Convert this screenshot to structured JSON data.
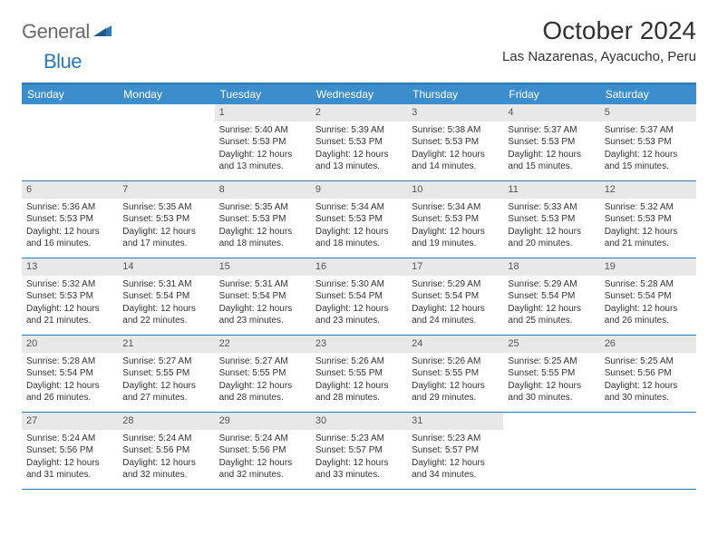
{
  "logo": {
    "text1": "General",
    "text2": "Blue"
  },
  "title": "October 2024",
  "location": "Las Nazarenas, Ayacucho, Peru",
  "colors": {
    "header_bg": "#3c8dcc",
    "header_border": "#2a7ab9",
    "daynum_bg": "#e8e8e8",
    "logo_gray": "#6b6b6b",
    "logo_blue": "#2a7ab9"
  },
  "dow": [
    "Sunday",
    "Monday",
    "Tuesday",
    "Wednesday",
    "Thursday",
    "Friday",
    "Saturday"
  ],
  "weeks": [
    [
      {
        "n": "",
        "sr": "",
        "ss": "",
        "dl": ""
      },
      {
        "n": "",
        "sr": "",
        "ss": "",
        "dl": ""
      },
      {
        "n": "1",
        "sr": "Sunrise: 5:40 AM",
        "ss": "Sunset: 5:53 PM",
        "dl": "Daylight: 12 hours and 13 minutes."
      },
      {
        "n": "2",
        "sr": "Sunrise: 5:39 AM",
        "ss": "Sunset: 5:53 PM",
        "dl": "Daylight: 12 hours and 13 minutes."
      },
      {
        "n": "3",
        "sr": "Sunrise: 5:38 AM",
        "ss": "Sunset: 5:53 PM",
        "dl": "Daylight: 12 hours and 14 minutes."
      },
      {
        "n": "4",
        "sr": "Sunrise: 5:37 AM",
        "ss": "Sunset: 5:53 PM",
        "dl": "Daylight: 12 hours and 15 minutes."
      },
      {
        "n": "5",
        "sr": "Sunrise: 5:37 AM",
        "ss": "Sunset: 5:53 PM",
        "dl": "Daylight: 12 hours and 15 minutes."
      }
    ],
    [
      {
        "n": "6",
        "sr": "Sunrise: 5:36 AM",
        "ss": "Sunset: 5:53 PM",
        "dl": "Daylight: 12 hours and 16 minutes."
      },
      {
        "n": "7",
        "sr": "Sunrise: 5:35 AM",
        "ss": "Sunset: 5:53 PM",
        "dl": "Daylight: 12 hours and 17 minutes."
      },
      {
        "n": "8",
        "sr": "Sunrise: 5:35 AM",
        "ss": "Sunset: 5:53 PM",
        "dl": "Daylight: 12 hours and 18 minutes."
      },
      {
        "n": "9",
        "sr": "Sunrise: 5:34 AM",
        "ss": "Sunset: 5:53 PM",
        "dl": "Daylight: 12 hours and 18 minutes."
      },
      {
        "n": "10",
        "sr": "Sunrise: 5:34 AM",
        "ss": "Sunset: 5:53 PM",
        "dl": "Daylight: 12 hours and 19 minutes."
      },
      {
        "n": "11",
        "sr": "Sunrise: 5:33 AM",
        "ss": "Sunset: 5:53 PM",
        "dl": "Daylight: 12 hours and 20 minutes."
      },
      {
        "n": "12",
        "sr": "Sunrise: 5:32 AM",
        "ss": "Sunset: 5:53 PM",
        "dl": "Daylight: 12 hours and 21 minutes."
      }
    ],
    [
      {
        "n": "13",
        "sr": "Sunrise: 5:32 AM",
        "ss": "Sunset: 5:53 PM",
        "dl": "Daylight: 12 hours and 21 minutes."
      },
      {
        "n": "14",
        "sr": "Sunrise: 5:31 AM",
        "ss": "Sunset: 5:54 PM",
        "dl": "Daylight: 12 hours and 22 minutes."
      },
      {
        "n": "15",
        "sr": "Sunrise: 5:31 AM",
        "ss": "Sunset: 5:54 PM",
        "dl": "Daylight: 12 hours and 23 minutes."
      },
      {
        "n": "16",
        "sr": "Sunrise: 5:30 AM",
        "ss": "Sunset: 5:54 PM",
        "dl": "Daylight: 12 hours and 23 minutes."
      },
      {
        "n": "17",
        "sr": "Sunrise: 5:29 AM",
        "ss": "Sunset: 5:54 PM",
        "dl": "Daylight: 12 hours and 24 minutes."
      },
      {
        "n": "18",
        "sr": "Sunrise: 5:29 AM",
        "ss": "Sunset: 5:54 PM",
        "dl": "Daylight: 12 hours and 25 minutes."
      },
      {
        "n": "19",
        "sr": "Sunrise: 5:28 AM",
        "ss": "Sunset: 5:54 PM",
        "dl": "Daylight: 12 hours and 26 minutes."
      }
    ],
    [
      {
        "n": "20",
        "sr": "Sunrise: 5:28 AM",
        "ss": "Sunset: 5:54 PM",
        "dl": "Daylight: 12 hours and 26 minutes."
      },
      {
        "n": "21",
        "sr": "Sunrise: 5:27 AM",
        "ss": "Sunset: 5:55 PM",
        "dl": "Daylight: 12 hours and 27 minutes."
      },
      {
        "n": "22",
        "sr": "Sunrise: 5:27 AM",
        "ss": "Sunset: 5:55 PM",
        "dl": "Daylight: 12 hours and 28 minutes."
      },
      {
        "n": "23",
        "sr": "Sunrise: 5:26 AM",
        "ss": "Sunset: 5:55 PM",
        "dl": "Daylight: 12 hours and 28 minutes."
      },
      {
        "n": "24",
        "sr": "Sunrise: 5:26 AM",
        "ss": "Sunset: 5:55 PM",
        "dl": "Daylight: 12 hours and 29 minutes."
      },
      {
        "n": "25",
        "sr": "Sunrise: 5:25 AM",
        "ss": "Sunset: 5:55 PM",
        "dl": "Daylight: 12 hours and 30 minutes."
      },
      {
        "n": "26",
        "sr": "Sunrise: 5:25 AM",
        "ss": "Sunset: 5:56 PM",
        "dl": "Daylight: 12 hours and 30 minutes."
      }
    ],
    [
      {
        "n": "27",
        "sr": "Sunrise: 5:24 AM",
        "ss": "Sunset: 5:56 PM",
        "dl": "Daylight: 12 hours and 31 minutes."
      },
      {
        "n": "28",
        "sr": "Sunrise: 5:24 AM",
        "ss": "Sunset: 5:56 PM",
        "dl": "Daylight: 12 hours and 32 minutes."
      },
      {
        "n": "29",
        "sr": "Sunrise: 5:24 AM",
        "ss": "Sunset: 5:56 PM",
        "dl": "Daylight: 12 hours and 32 minutes."
      },
      {
        "n": "30",
        "sr": "Sunrise: 5:23 AM",
        "ss": "Sunset: 5:57 PM",
        "dl": "Daylight: 12 hours and 33 minutes."
      },
      {
        "n": "31",
        "sr": "Sunrise: 5:23 AM",
        "ss": "Sunset: 5:57 PM",
        "dl": "Daylight: 12 hours and 34 minutes."
      },
      {
        "n": "",
        "sr": "",
        "ss": "",
        "dl": ""
      },
      {
        "n": "",
        "sr": "",
        "ss": "",
        "dl": ""
      }
    ]
  ]
}
